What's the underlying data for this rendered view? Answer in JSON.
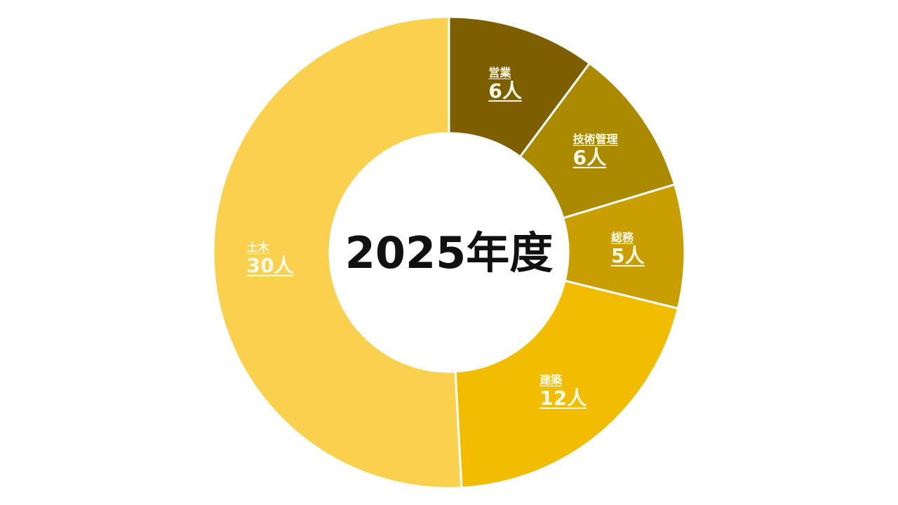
{
  "chart_data": {
    "type": "pie",
    "subtype": "donut",
    "center_label": "2025年度",
    "unit": "人",
    "start": "top, clockwise",
    "slices": [
      {
        "label": "営業",
        "value": 6,
        "display": "6人",
        "color": "#7d5f00"
      },
      {
        "label": "技術管理",
        "value": 6,
        "display": "6人",
        "color": "#ab8a00"
      },
      {
        "label": "総務",
        "value": 5,
        "display": "5人",
        "color": "#c99e00"
      },
      {
        "label": "建築",
        "value": 12,
        "display": "12人",
        "color": "#f2bc00"
      },
      {
        "label": "土木",
        "value": 30,
        "display": "30人",
        "color": "#fad04f"
      }
    ]
  }
}
